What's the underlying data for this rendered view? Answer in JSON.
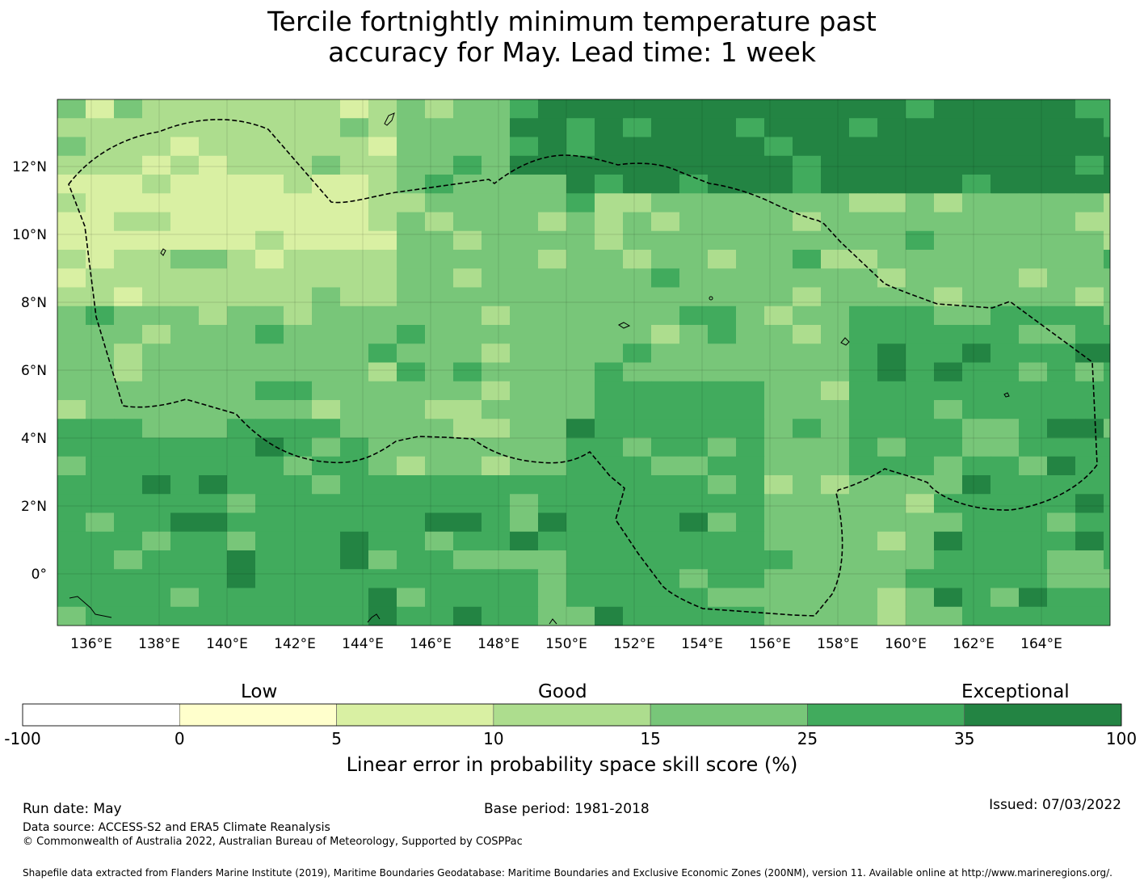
{
  "title_line1": "Tercile fortnightly minimum temperature past",
  "title_line2": "accuracy for May. Lead time: 1 week",
  "map": {
    "lon_labels": [
      "136°E",
      "138°E",
      "140°E",
      "142°E",
      "144°E",
      "146°E",
      "148°E",
      "150°E",
      "152°E",
      "154°E",
      "156°E",
      "158°E",
      "160°E",
      "162°E",
      "164°E"
    ],
    "lat_labels": [
      "12°N",
      "10°N",
      "8°N",
      "6°N",
      "4°N",
      "2°N",
      "0°"
    ]
  },
  "colorbar": {
    "category_labels": {
      "low": "Low",
      "good": "Good",
      "exceptional": "Exceptional"
    },
    "bins": [
      {
        "from": -100,
        "to": 0,
        "color": "#ffffff"
      },
      {
        "from": 0,
        "to": 5,
        "color": "#ffffcc"
      },
      {
        "from": 5,
        "to": 10,
        "color": "#d9f0a3"
      },
      {
        "from": 10,
        "to": 15,
        "color": "#addd8e"
      },
      {
        "from": 15,
        "to": 25,
        "color": "#78c679"
      },
      {
        "from": 25,
        "to": 35,
        "color": "#41ab5d"
      },
      {
        "from": 35,
        "to": 100,
        "color": "#238443"
      }
    ],
    "tick_labels": [
      "-100",
      "0",
      "5",
      "10",
      "15",
      "25",
      "35",
      "100"
    ],
    "axis_title": "Linear error in probability space skill score (%)"
  },
  "footer": {
    "run_date": "Run date: May",
    "base_period": "Base period: 1981-2018",
    "issued": "Issued: 07/03/2022",
    "data_source": "Data source: ACCESS-S2 and ERA5 Climate Reanalysis",
    "copyright": "© Commonwealth of Australia 2022, Australian Bureau of Meteorology, Supported by COSPPac",
    "shapefile_note": "Shapefile data extracted from Flanders Marine Institute (2019), Maritime Boundaries Geodatabase: Maritime Boundaries and Exclusive Economic Zones (200NM), version 11. Available online at http://www.marineregions.org/."
  }
}
